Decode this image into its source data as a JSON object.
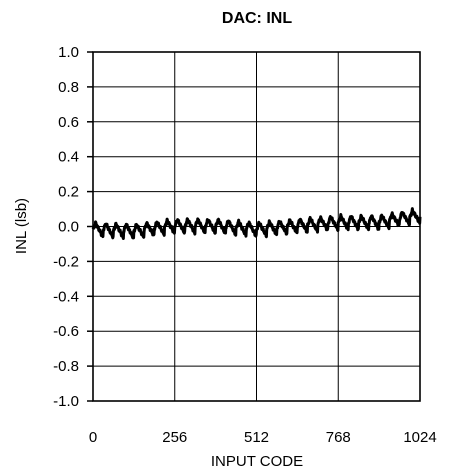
{
  "chart_data": {
    "type": "line",
    "title": "DAC: INL",
    "xlabel": "INPUT CODE",
    "ylabel": "INL (lsb)",
    "xlim": [
      0,
      1024
    ],
    "ylim": [
      -1.0,
      1.0
    ],
    "x_ticks": [
      0,
      256,
      512,
      768,
      1024
    ],
    "x_tick_labels": [
      "0",
      "256",
      "512",
      "768",
      "1024"
    ],
    "y_ticks": [
      1.0,
      0.8,
      0.6,
      0.4,
      0.2,
      0.0,
      -0.2,
      -0.4,
      -0.6,
      -0.8,
      -1.0
    ],
    "y_tick_labels": [
      "1.0",
      "0.8",
      "0.6",
      "0.4",
      "0.2",
      "0.0",
      "-0.2",
      "-0.4",
      "-0.6",
      "-0.8",
      "-1.0"
    ],
    "grid": true,
    "legend": "none",
    "series": [
      {
        "color": "#000000",
        "envelope": {
          "x": [
            0,
            128,
            256,
            384,
            512,
            640,
            768,
            896,
            1024
          ],
          "center": [
            -0.02,
            -0.03,
            0.0,
            0.0,
            -0.02,
            0.0,
            0.02,
            0.02,
            0.06
          ]
        },
        "ripple_period": 32,
        "ripple_amplitude": 0.04
      }
    ]
  }
}
